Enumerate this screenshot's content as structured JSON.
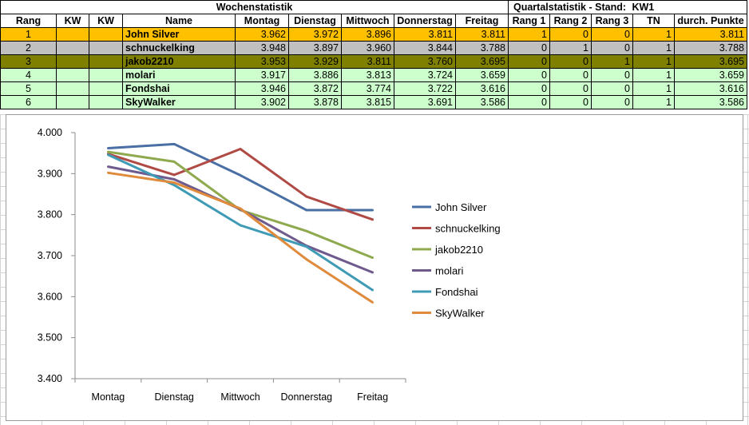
{
  "header": {
    "weekly_title": "Wochenstatistik",
    "quarter_title": "Quartalstatistik - Stand:",
    "quarter_week": "KW1"
  },
  "columns": [
    "Rang",
    "KW",
    "KW",
    "Name",
    "Montag",
    "Dienstag",
    "Mittwoch",
    "Donnerstag",
    "Freitag",
    "Rang 1",
    "Rang 2",
    "Rang 3",
    "TN",
    "durch. Punkte"
  ],
  "rows": [
    {
      "rang": "1",
      "kw1": "",
      "kw2": "",
      "name": "John Silver",
      "mo": "3.962",
      "di": "3.972",
      "mi": "3.896",
      "do": "3.811",
      "fr": "3.811",
      "r1": "1",
      "r2": "0",
      "r3": "0",
      "tn": "1",
      "avg": "3.811"
    },
    {
      "rang": "2",
      "kw1": "",
      "kw2": "",
      "name": "schnuckelking",
      "mo": "3.948",
      "di": "3.897",
      "mi": "3.960",
      "do": "3.844",
      "fr": "3.788",
      "r1": "0",
      "r2": "1",
      "r3": "0",
      "tn": "1",
      "avg": "3.788"
    },
    {
      "rang": "3",
      "kw1": "",
      "kw2": "",
      "name": "jakob2210",
      "mo": "3.953",
      "di": "3.929",
      "mi": "3.811",
      "do": "3.760",
      "fr": "3.695",
      "r1": "0",
      "r2": "0",
      "r3": "1",
      "tn": "1",
      "avg": "3.695"
    },
    {
      "rang": "4",
      "kw1": "",
      "kw2": "",
      "name": "molari",
      "mo": "3.917",
      "di": "3.886",
      "mi": "3.813",
      "do": "3.724",
      "fr": "3.659",
      "r1": "0",
      "r2": "0",
      "r3": "0",
      "tn": "1",
      "avg": "3.659"
    },
    {
      "rang": "5",
      "kw1": "",
      "kw2": "",
      "name": "Fondshai",
      "mo": "3.946",
      "di": "3.872",
      "mi": "3.774",
      "do": "3.722",
      "fr": "3.616",
      "r1": "0",
      "r2": "0",
      "r3": "0",
      "tn": "1",
      "avg": "3.616"
    },
    {
      "rang": "6",
      "kw1": "",
      "kw2": "",
      "name": "SkyWalker",
      "mo": "3.902",
      "di": "3.878",
      "mi": "3.815",
      "do": "3.691",
      "fr": "3.586",
      "r1": "0",
      "r2": "0",
      "r3": "0",
      "tn": "1",
      "avg": "3.586"
    }
  ],
  "row_colors": [
    "#ffc000",
    "#c0c0c0",
    "#808000",
    "#ccffcc",
    "#ccffcc",
    "#ccffcc"
  ],
  "chart_data": {
    "type": "line",
    "categories": [
      "Montag",
      "Dienstag",
      "Mittwoch",
      "Donnerstag",
      "Freitag"
    ],
    "ylim": [
      3.4,
      4.0
    ],
    "yticks": [
      "4.000",
      "3.900",
      "3.800",
      "3.700",
      "3.600",
      "3.500",
      "3.400"
    ],
    "grid": false,
    "legend": "right",
    "series": [
      {
        "name": "John Silver",
        "color": "#4a6fa5",
        "values": [
          3.962,
          3.972,
          3.896,
          3.811,
          3.811
        ]
      },
      {
        "name": "schnuckelking",
        "color": "#b04a45",
        "values": [
          3.948,
          3.897,
          3.96,
          3.844,
          3.788
        ]
      },
      {
        "name": "jakob2210",
        "color": "#8fa94e",
        "values": [
          3.953,
          3.929,
          3.811,
          3.76,
          3.695
        ]
      },
      {
        "name": "molari",
        "color": "#6e5a8c",
        "values": [
          3.917,
          3.886,
          3.813,
          3.724,
          3.659
        ]
      },
      {
        "name": "Fondshai",
        "color": "#3f9bb5",
        "values": [
          3.946,
          3.872,
          3.774,
          3.722,
          3.616
        ]
      },
      {
        "name": "SkyWalker",
        "color": "#e08a3c",
        "values": [
          3.902,
          3.878,
          3.815,
          3.691,
          3.586
        ]
      }
    ]
  }
}
